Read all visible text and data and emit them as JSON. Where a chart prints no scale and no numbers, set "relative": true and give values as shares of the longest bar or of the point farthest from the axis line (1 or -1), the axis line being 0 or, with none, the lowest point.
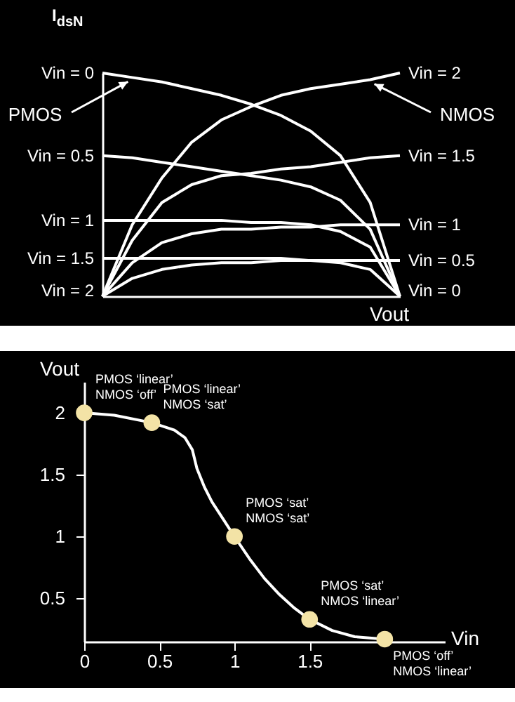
{
  "chart_data": [
    {
      "type": "line",
      "relative": true,
      "xlabel": "Vout",
      "ylabel": "I$_{dsN}$",
      "legend": false,
      "categories": [
        null,
        null,
        null,
        null,
        null,
        null,
        null,
        null,
        null,
        null,
        null
      ],
      "series": [
        {
          "name": "Vin = 0",
          "color": "#ffffff",
          "values": [
            1,
            0.98,
            0.96,
            0.93,
            0.9,
            0.86,
            0.81,
            0.74,
            0.63,
            0.42,
            0
          ]
        },
        {
          "name": "Vin = 0.5",
          "color": "#ffffff",
          "values": [
            0.63,
            0.62,
            0.6,
            0.58,
            0.56,
            0.54,
            0.52,
            0.49,
            0.43,
            0.3,
            0
          ]
        },
        {
          "name": "Vin = 1",
          "color": "#ffffff",
          "values": [
            0.34,
            0.34,
            0.34,
            0.34,
            0.34,
            0.33,
            0.33,
            0.32,
            0.29,
            0.22,
            0
          ]
        },
        {
          "name": "Vin = 1.5",
          "color": "#ffffff",
          "values": [
            0.17,
            0.17,
            0.17,
            0.17,
            0.17,
            0.17,
            0.17,
            0.16,
            0.15,
            0.12,
            0
          ]
        },
        {
          "name": "Vin = 2",
          "color": "#ffffff",
          "values": [
            0,
            0.32,
            0.53,
            0.69,
            0.79,
            0.85,
            0.9,
            0.93,
            0.95,
            0.97,
            1
          ]
        },
        {
          "name": "Vin = 1.5",
          "color": "#ffffff",
          "values": [
            0,
            0.25,
            0.42,
            0.5,
            0.54,
            0.55,
            0.57,
            0.58,
            0.6,
            0.62,
            0.63
          ]
        },
        {
          "name": "Vin = 1",
          "color": "#ffffff",
          "values": [
            0,
            0.15,
            0.24,
            0.28,
            0.3,
            0.3,
            0.31,
            0.31,
            0.32,
            0.32,
            0.32
          ]
        },
        {
          "name": "Vin = 0.5",
          "color": "#ffffff",
          "values": [
            0,
            0.08,
            0.12,
            0.14,
            0.15,
            0.15,
            0.16,
            0.16,
            0.16,
            0.16,
            0.16
          ]
        }
      ],
      "annotations": [
        "PMOS",
        "NMOS",
        "Vin = 2",
        "Vin = 0"
      ]
    },
    {
      "type": "line",
      "xlabel": "Vin",
      "ylabel": "Vout",
      "xlim": [
        0,
        2.4
      ],
      "ylim": [
        0.15,
        2.25
      ],
      "xticks": [
        0,
        0.5,
        1,
        1.5
      ],
      "yticks": [
        0.5,
        1,
        1.5,
        2
      ],
      "series": [
        {
          "color": "#ffffff",
          "x": [
            0,
            0.2,
            0.45,
            0.6,
            0.67,
            0.72,
            0.75,
            0.8,
            0.85,
            0.92,
            1,
            1.1,
            1.2,
            1.3,
            1.4,
            1.5,
            1.65,
            1.8,
            2
          ],
          "values": [
            2,
            1.98,
            1.92,
            1.86,
            1.8,
            1.7,
            1.55,
            1.4,
            1.28,
            1.15,
            1,
            0.82,
            0.66,
            0.53,
            0.42,
            0.33,
            0.24,
            0.19,
            0.17
          ]
        },
        {
          "type": "scatter",
          "color": "#f3e3a6",
          "x": [
            0,
            0.45,
            1,
            1.5,
            2
          ],
          "values": [
            2,
            1.92,
            1,
            0.33,
            0.17
          ]
        }
      ],
      "annotations": [
        {
          "text": "PMOS ‘linear’\nNMOS ‘off’",
          "x": 0,
          "y": 2
        },
        {
          "text": "PMOS ‘linear’\nNMOS ‘sat’",
          "x": 0.45,
          "y": 1.92
        },
        {
          "text": "PMOS ‘sat’\nNMOS ‘sat’",
          "x": 1,
          "y": 1
        },
        {
          "text": "PMOS ‘sat’\nNMOS ‘linear’",
          "x": 1.5,
          "y": 0.33
        },
        {
          "text": "PMOS ‘off’\nNMOS ‘linear’",
          "x": 2,
          "y": 0.17
        }
      ]
    }
  ]
}
